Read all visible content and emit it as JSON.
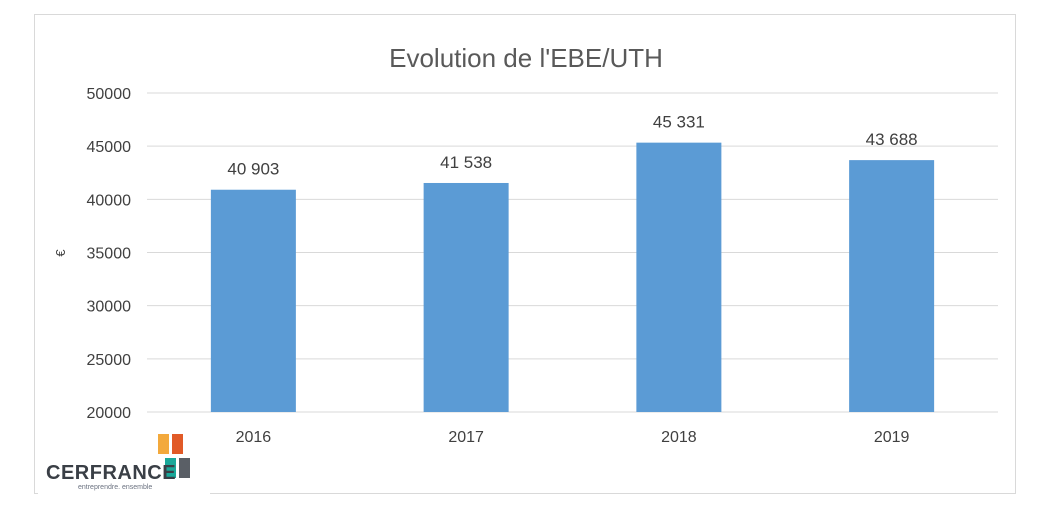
{
  "chart_data": {
    "type": "bar",
    "title": "Evolution de l'EBE/UTH",
    "xlabel": "",
    "ylabel": "€",
    "categories": [
      "2016",
      "2017",
      "2018",
      "2019"
    ],
    "values": [
      40903,
      41538,
      45331,
      43688
    ],
    "data_labels": [
      "40 903",
      "41 538",
      "45 331",
      "43 688"
    ],
    "ylim": [
      20000,
      50000
    ],
    "yticks": [
      20000,
      25000,
      30000,
      35000,
      40000,
      45000,
      50000
    ],
    "ytick_labels": [
      "20000",
      "25000",
      "30000",
      "35000",
      "40000",
      "45000",
      "50000"
    ],
    "grid": true,
    "legend": "none",
    "colors": {
      "bar": "#5b9bd5",
      "grid": "#d9d9d9",
      "text": "#404040",
      "title": "#595959"
    }
  },
  "logo": {
    "name": "CERFRANCE",
    "tagline": "entreprendre. ensemble",
    "colors": [
      "#f3a93c",
      "#e15a27",
      "#1aa89a",
      "#5a5f66"
    ]
  }
}
